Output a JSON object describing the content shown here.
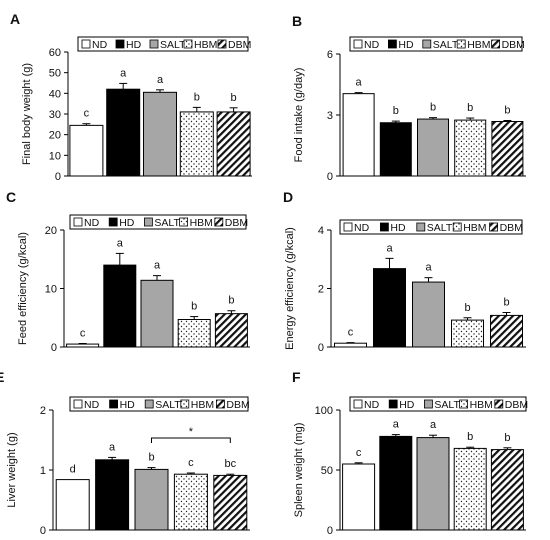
{
  "legend_labels": [
    "ND",
    "HD",
    "SALT",
    "HBM",
    "DBM"
  ],
  "colors": {
    "ND": "#ffffff",
    "HD": "#000000",
    "SALT": "#a6a6a6",
    "HBM": "dots",
    "DBM": "stripes"
  },
  "chart_data": [
    {
      "panel": "A",
      "type": "bar",
      "ylabel": "Final body weight (g)",
      "categories": [
        "ND",
        "HD",
        "SALT",
        "HBM",
        "DBM"
      ],
      "values": [
        24.5,
        42.0,
        40.5,
        31.0,
        31.0
      ],
      "errors": [
        0.8,
        2.8,
        1.2,
        2.2,
        2.0
      ],
      "letters": [
        "c",
        "a",
        "a",
        "b",
        "b"
      ],
      "ylim": [
        0,
        60
      ],
      "yticks": [
        "0",
        "10",
        "20",
        "30",
        "40",
        "50",
        "60"
      ]
    },
    {
      "panel": "B",
      "type": "bar",
      "ylabel": "Food intake (g/day)",
      "categories": [
        "ND",
        "HD",
        "SALT",
        "HBM",
        "DBM"
      ],
      "values": [
        4.05,
        2.62,
        2.8,
        2.75,
        2.68
      ],
      "errors": [
        0.05,
        0.08,
        0.07,
        0.1,
        0.05
      ],
      "letters": [
        "a",
        "b",
        "b",
        "b",
        "b"
      ],
      "ylim": [
        0,
        6
      ],
      "yticks": [
        "0",
        "3",
        "6"
      ]
    },
    {
      "panel": "C",
      "type": "bar",
      "ylabel": "Feed efficiency (g/kcal)",
      "categories": [
        "ND",
        "HD",
        "SALT",
        "HBM",
        "DBM"
      ],
      "values": [
        0.5,
        14.0,
        11.4,
        4.7,
        5.7
      ],
      "errors": [
        0.1,
        2.0,
        0.8,
        0.5,
        0.5
      ],
      "letters": [
        "c",
        "a",
        "a",
        "b",
        "b"
      ],
      "ylim": [
        0,
        20
      ],
      "yticks": [
        "0",
        "10",
        "20"
      ]
    },
    {
      "panel": "D",
      "type": "bar",
      "ylabel": "Energy efficiency (g/kcal)",
      "categories": [
        "ND",
        "HD",
        "SALT",
        "HBM",
        "DBM"
      ],
      "values": [
        0.13,
        2.68,
        2.22,
        0.92,
        1.08
      ],
      "errors": [
        0.02,
        0.35,
        0.15,
        0.08,
        0.1
      ],
      "letters": [
        "c",
        "a",
        "a",
        "b",
        "b"
      ],
      "ylim": [
        0,
        4
      ],
      "yticks": [
        "0",
        "2",
        "4"
      ]
    },
    {
      "panel": "E",
      "type": "bar",
      "ylabel": "Liver weight (g)",
      "categories": [
        "ND",
        "HD",
        "SALT",
        "HBM",
        "DBM"
      ],
      "values": [
        0.84,
        1.17,
        1.01,
        0.93,
        0.91
      ],
      "errors": [
        0.0,
        0.04,
        0.03,
        0.02,
        0.02
      ],
      "letters": [
        "d",
        "a",
        "b",
        "c",
        "bc"
      ],
      "ylim": [
        0,
        2
      ],
      "yticks": [
        "0",
        "1",
        "2"
      ],
      "bracket": {
        "from": 2,
        "to": 4,
        "label": "*"
      }
    },
    {
      "panel": "F",
      "type": "bar",
      "ylabel": "Spleen weight (mg)",
      "categories": [
        "ND",
        "HD",
        "SALT",
        "HBM",
        "DBM"
      ],
      "values": [
        55.0,
        78.0,
        77.0,
        68.0,
        67.0
      ],
      "errors": [
        1.0,
        1.5,
        2.0,
        1.0,
        1.5
      ],
      "letters": [
        "c",
        "a",
        "a",
        "b",
        "b"
      ],
      "ylim": [
        0,
        100
      ],
      "yticks": [
        "0",
        "50",
        "100"
      ]
    }
  ]
}
